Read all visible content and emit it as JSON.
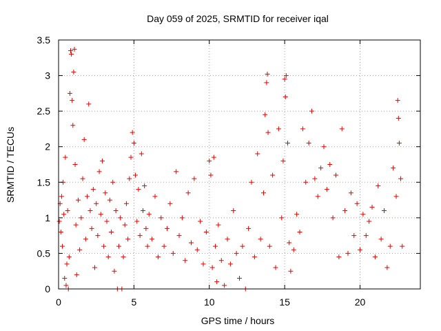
{
  "chart_data": {
    "type": "scatter",
    "title": "Day 059 of 2025, SRMTID for receiver iqal",
    "xlabel": "GPS time / hours",
    "ylabel": "SRMTID / TECUs",
    "xlim": [
      0,
      24
    ],
    "ylim": [
      0,
      3.5
    ],
    "xticks": [
      0,
      5,
      10,
      15,
      20
    ],
    "xtick_labels": [
      "0",
      "5",
      "10",
      "15",
      "20"
    ],
    "yticks": [
      0,
      0.5,
      1,
      1.5,
      2,
      2.5,
      3,
      3.5
    ],
    "ytick_labels": [
      "0",
      "0.5",
      "1",
      "1.5",
      "2",
      "2.5",
      "3",
      "3.5"
    ],
    "grid": true,
    "marker": "plus",
    "color": "#e00000",
    "series": [
      {
        "name": "SRMTID",
        "points": [
          [
            0.05,
            0.95
          ],
          [
            0.1,
            1.2
          ],
          [
            0.15,
            0.8
          ],
          [
            0.2,
            1.3
          ],
          [
            0.25,
            0.6
          ],
          [
            0.3,
            1.5
          ],
          [
            0.35,
            1.05
          ],
          [
            0.4,
            0.15
          ],
          [
            0.45,
            1.85
          ],
          [
            0.5,
            0.05
          ],
          [
            0.55,
            0.35
          ],
          [
            0.6,
            1.1
          ],
          [
            0.65,
            0.0
          ],
          [
            0.7,
            0.45
          ],
          [
            0.75,
            2.75
          ],
          [
            0.8,
            3.35
          ],
          [
            0.85,
            3.3
          ],
          [
            0.9,
            2.65
          ],
          [
            0.95,
            2.3
          ],
          [
            1.0,
            3.05
          ],
          [
            1.05,
            3.37
          ],
          [
            1.1,
            1.75
          ],
          [
            1.15,
            0.9
          ],
          [
            1.2,
            0.2
          ],
          [
            1.3,
            1.25
          ],
          [
            1.4,
            0.55
          ],
          [
            1.5,
            1.0
          ],
          [
            1.6,
            1.55
          ],
          [
            1.7,
            2.1
          ],
          [
            1.8,
            0.7
          ],
          [
            1.9,
            1.3
          ],
          [
            2.0,
            2.6
          ],
          [
            2.1,
            1.1
          ],
          [
            2.2,
            0.85
          ],
          [
            2.3,
            1.4
          ],
          [
            2.4,
            0.3
          ],
          [
            2.5,
            1.2
          ],
          [
            2.6,
            0.75
          ],
          [
            2.7,
            1.65
          ],
          [
            2.8,
            1.05
          ],
          [
            2.9,
            1.8
          ],
          [
            3.0,
            0.6
          ],
          [
            3.1,
            1.35
          ],
          [
            3.2,
            0.95
          ],
          [
            3.3,
            0.45
          ],
          [
            3.4,
            1.25
          ],
          [
            3.5,
            0.8
          ],
          [
            3.6,
            1.5
          ],
          [
            3.7,
            0.25
          ],
          [
            3.8,
            1.1
          ],
          [
            3.9,
            0.0
          ],
          [
            4.0,
            0.6
          ],
          [
            4.1,
            1.0
          ],
          [
            4.2,
            0.0
          ],
          [
            4.3,
            0.45
          ],
          [
            4.4,
            0.9
          ],
          [
            4.5,
            1.2
          ],
          [
            4.6,
            0.7
          ],
          [
            4.7,
            1.55
          ],
          [
            4.8,
            1.85
          ],
          [
            4.9,
            2.2
          ],
          [
            5.0,
            2.05
          ],
          [
            5.1,
            1.6
          ],
          [
            5.2,
            0.95
          ],
          [
            5.3,
            1.4
          ],
          [
            5.4,
            0.75
          ],
          [
            5.5,
            1.9
          ],
          [
            5.6,
            1.1
          ],
          [
            5.7,
            1.45
          ],
          [
            5.8,
            0.85
          ],
          [
            5.9,
            0.6
          ],
          [
            6.0,
            1.05
          ],
          [
            6.2,
            0.7
          ],
          [
            6.4,
            1.3
          ],
          [
            6.6,
            0.45
          ],
          [
            6.8,
            1.0
          ],
          [
            7.0,
            0.6
          ],
          [
            7.2,
            0.85
          ],
          [
            7.4,
            1.2
          ],
          [
            7.6,
            0.5
          ],
          [
            7.8,
            1.65
          ],
          [
            8.0,
            0.75
          ],
          [
            8.2,
            1.0
          ],
          [
            8.4,
            0.4
          ],
          [
            8.6,
            1.35
          ],
          [
            8.8,
            0.65
          ],
          [
            9.0,
            1.55
          ],
          [
            9.2,
            0.55
          ],
          [
            9.4,
            0.95
          ],
          [
            9.6,
            0.35
          ],
          [
            9.8,
            0.8
          ],
          [
            10.0,
            1.8
          ],
          [
            10.1,
            1.6
          ],
          [
            10.2,
            0.3
          ],
          [
            10.3,
            1.85
          ],
          [
            10.4,
            0.6
          ],
          [
            10.5,
            0.1
          ],
          [
            10.6,
            0.9
          ],
          [
            10.8,
            0.4
          ],
          [
            11.0,
            0.05
          ],
          [
            11.2,
            0.7
          ],
          [
            11.4,
            0.35
          ],
          [
            11.6,
            1.1
          ],
          [
            11.8,
            0.5
          ],
          [
            12.0,
            0.15
          ],
          [
            12.2,
            0.6
          ],
          [
            12.4,
            0.0
          ],
          [
            12.6,
            0.85
          ],
          [
            12.8,
            1.5
          ],
          [
            13.0,
            0.45
          ],
          [
            13.2,
            1.9
          ],
          [
            13.4,
            0.7
          ],
          [
            13.6,
            1.35
          ],
          [
            13.7,
            2.45
          ],
          [
            13.8,
            2.9
          ],
          [
            13.85,
            3.02
          ],
          [
            13.9,
            2.2
          ],
          [
            14.0,
            0.6
          ],
          [
            14.2,
            1.6
          ],
          [
            14.4,
            0.3
          ],
          [
            14.6,
            2.25
          ],
          [
            14.8,
            1.0
          ],
          [
            14.9,
            1.8
          ],
          [
            15.0,
            2.95
          ],
          [
            15.05,
            2.7
          ],
          [
            15.1,
            3.0
          ],
          [
            15.2,
            2.05
          ],
          [
            15.3,
            0.65
          ],
          [
            15.4,
            0.25
          ],
          [
            15.6,
            0.55
          ],
          [
            15.8,
            1.05
          ],
          [
            16.0,
            0.8
          ],
          [
            16.2,
            2.25
          ],
          [
            16.4,
            1.5
          ],
          [
            16.6,
            2.05
          ],
          [
            16.8,
            2.5
          ],
          [
            17.0,
            1.55
          ],
          [
            17.2,
            1.3
          ],
          [
            17.4,
            1.7
          ],
          [
            17.6,
            2.0
          ],
          [
            17.8,
            1.4
          ],
          [
            18.0,
            1.75
          ],
          [
            18.2,
            1.0
          ],
          [
            18.4,
            1.6
          ],
          [
            18.6,
            0.45
          ],
          [
            18.8,
            2.25
          ],
          [
            19.0,
            1.1
          ],
          [
            19.2,
            0.5
          ],
          [
            19.4,
            1.35
          ],
          [
            19.6,
            0.75
          ],
          [
            19.8,
            1.2
          ],
          [
            20.0,
            0.55
          ],
          [
            20.2,
            1.05
          ],
          [
            20.4,
            0.75
          ],
          [
            20.6,
            0.95
          ],
          [
            20.8,
            1.15
          ],
          [
            21.0,
            0.45
          ],
          [
            21.2,
            1.45
          ],
          [
            21.4,
            0.7
          ],
          [
            21.6,
            1.1
          ],
          [
            21.8,
            0.3
          ],
          [
            22.0,
            0.6
          ],
          [
            22.2,
            1.7
          ],
          [
            22.4,
            1.3
          ],
          [
            22.5,
            2.65
          ],
          [
            22.55,
            2.4
          ],
          [
            22.6,
            2.05
          ],
          [
            22.7,
            1.55
          ],
          [
            22.8,
            0.6
          ]
        ]
      }
    ]
  }
}
